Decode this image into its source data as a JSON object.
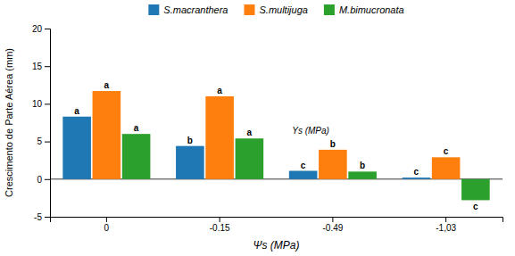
{
  "chart_data": {
    "type": "bar",
    "categories": [
      "0",
      "-0.15",
      "-0.49",
      "-1,03"
    ],
    "series": [
      {
        "name": "S.macranthera",
        "values": [
          8.3,
          4.4,
          1.1,
          0.2
        ],
        "labels": [
          "a",
          "b",
          "c",
          "c"
        ]
      },
      {
        "name": "S.multijuga",
        "values": [
          11.7,
          11.0,
          3.9,
          2.9
        ],
        "labels": [
          "a",
          "a",
          "b",
          "c"
        ]
      },
      {
        "name": "M.bimucronata",
        "values": [
          6.0,
          5.4,
          1.0,
          -2.8
        ],
        "labels": [
          "a",
          "a",
          "b",
          "c"
        ]
      }
    ],
    "ylabel": "Crescimento de Parte Aérea (mm)",
    "xlabel": "Ψs (MPa)",
    "annotations": [
      "Ys (MPa)"
    ],
    "ylim": [
      -5,
      20
    ],
    "yticks": [
      -5,
      0,
      5,
      10,
      15,
      20
    ],
    "grid": false,
    "legend": "top"
  }
}
